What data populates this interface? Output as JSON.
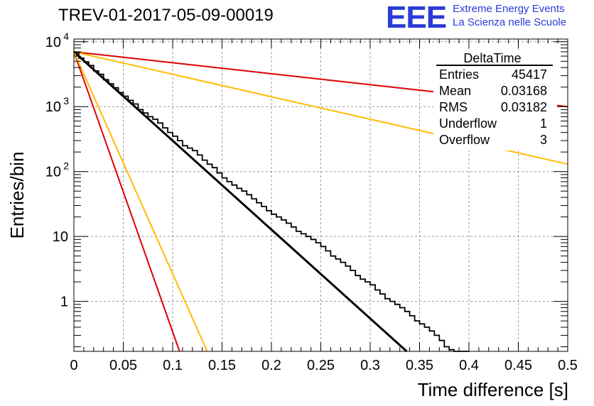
{
  "header": {
    "title": "TREV-01-2017-05-09-00019",
    "logo_text": "EEE",
    "org_line1": "Extreme Energy Events",
    "org_line2": "La Scienza nelle Scuole"
  },
  "stats": {
    "name": "DeltaTime",
    "rows": [
      {
        "label": "Entries",
        "value": "45417"
      },
      {
        "label": "Mean",
        "value": "0.03168"
      },
      {
        "label": "RMS",
        "value": "0.03182"
      },
      {
        "label": "Underflow",
        "value": "1"
      },
      {
        "label": "Overflow",
        "value": "3"
      }
    ]
  },
  "chart_data": {
    "type": "histogram",
    "title": "TREV-01-2017-05-09-00019",
    "xlabel": "Time difference [s]",
    "ylabel": "Entries/bin",
    "xlim": [
      0,
      0.5
    ],
    "ylim": [
      0.17,
      11000
    ],
    "yscale": "log",
    "grid": true,
    "x_ticks": [
      "0",
      "0.05",
      "0.1",
      "0.15",
      "0.2",
      "0.25",
      "0.3",
      "0.35",
      "0.4",
      "0.45",
      "0.5"
    ],
    "y_ticks": [
      {
        "value": 1,
        "label": "1"
      },
      {
        "value": 10,
        "label": "10"
      },
      {
        "value": 100,
        "label": "10",
        "exp": "2"
      },
      {
        "value": 1000,
        "label": "10",
        "exp": "3"
      },
      {
        "value": 10000,
        "label": "10",
        "exp": "4"
      }
    ],
    "histogram": {
      "bin_width": 0.005,
      "start": 0,
      "counts": [
        6800,
        5600,
        4900,
        4300,
        3550,
        3150,
        2600,
        2250,
        1950,
        1650,
        1450,
        1250,
        1100,
        900,
        800,
        700,
        640,
        560,
        470,
        400,
        350,
        300,
        250,
        230,
        210,
        180,
        150,
        130,
        115,
        95,
        80,
        70,
        62,
        55,
        50,
        44,
        38,
        33,
        29,
        25,
        22,
        20,
        18,
        16,
        14,
        12,
        11,
        10,
        9,
        8,
        7,
        6,
        5,
        4.5,
        4,
        3.5,
        3,
        2.5,
        2.2,
        2,
        1.8,
        1.5,
        1.3,
        1.1,
        1,
        0.9,
        0.8,
        0.7,
        0.6,
        0.5,
        0.45,
        0.4,
        0.35,
        0.3,
        0.25,
        0.2,
        0.18,
        0.15,
        0.13,
        0.11
      ],
      "note_style": "step"
    },
    "series": [
      {
        "color": "#000000",
        "points": [
          [
            0,
            7000
          ],
          [
            0.337,
            0.17
          ]
        ]
      },
      {
        "color": "#dd0000",
        "points": [
          [
            0,
            7000
          ],
          [
            0.107,
            0.17
          ]
        ]
      },
      {
        "color": "#ffbb00",
        "points": [
          [
            0,
            7000
          ],
          [
            0.135,
            0.17
          ]
        ]
      },
      {
        "color": "#dd0000",
        "points": [
          [
            0,
            7000
          ],
          [
            0.5,
            1000
          ]
        ]
      },
      {
        "color": "#ffbb00",
        "points": [
          [
            0,
            7000
          ],
          [
            0.5,
            130
          ]
        ]
      }
    ]
  }
}
